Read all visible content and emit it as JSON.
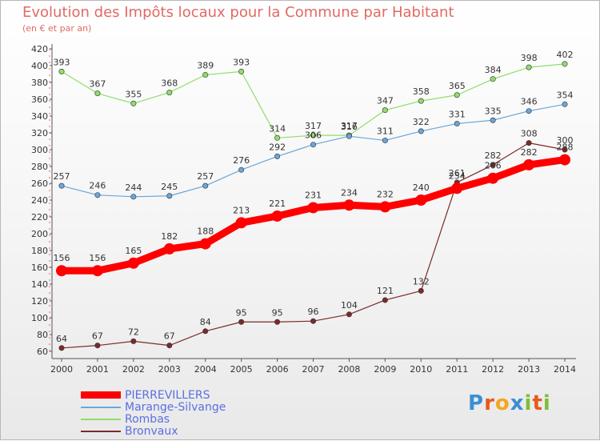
{
  "title": "Evolution des Impôts locaux pour la Commune par Habitant",
  "subtitle": "(en € et par an)",
  "logo": {
    "text": "Proxiti",
    "letters": [
      "P",
      "r",
      "o",
      "x",
      "i",
      "t",
      "i"
    ],
    "colors": [
      "#3a8fd4",
      "#e8591e",
      "#f2a81d",
      "#3a8fd4",
      "#7bbf3a",
      "#e8591e",
      "#7bbf3a"
    ]
  },
  "chart_data": {
    "type": "line",
    "title": "Evolution des Impôts locaux pour la Commune par Habitant",
    "subtitle": "(en € et par an)",
    "x": [
      2000,
      2001,
      2002,
      2003,
      2004,
      2005,
      2006,
      2007,
      2008,
      2009,
      2010,
      2011,
      2012,
      2013,
      2014
    ],
    "ylim": [
      60,
      420
    ],
    "yticks": [
      60,
      80,
      100,
      120,
      140,
      160,
      180,
      200,
      220,
      240,
      260,
      280,
      300,
      320,
      340,
      360,
      380,
      400,
      420
    ],
    "grid": false,
    "legend_position": "bottom-left",
    "series": [
      {
        "name": "PIERREVILLERS",
        "color": "#ff0000",
        "values": [
          156,
          156,
          165,
          182,
          188,
          213,
          221,
          231,
          234,
          232,
          240,
          254,
          266,
          282,
          288
        ],
        "labels": [
          "156",
          "156",
          "165",
          "182",
          "188",
          "213",
          "221",
          "231",
          "234",
          "232",
          "240",
          "254",
          "266",
          "282",
          "288"
        ]
      },
      {
        "name": "Marange-Silvange",
        "color": "#6aa6d9",
        "values": [
          257,
          246,
          244,
          245,
          257,
          276,
          292,
          306,
          316,
          311,
          322,
          331,
          335,
          346,
          354
        ],
        "labels": [
          "257",
          "246",
          "244",
          "245",
          "257",
          "276",
          "292",
          "306",
          "316",
          "311",
          "322",
          "331",
          "335",
          "346",
          "354"
        ]
      },
      {
        "name": "Rombas",
        "color": "#90dd6a",
        "values": [
          393,
          367,
          355,
          368,
          389,
          393,
          314,
          317,
          317,
          347,
          358,
          365,
          384,
          398,
          402
        ],
        "labels": [
          "393",
          "367",
          "355",
          "368",
          "389",
          "393",
          "314",
          "317",
          "317",
          "347",
          "358",
          "365",
          "384",
          "398",
          "402"
        ]
      },
      {
        "name": "Bronvaux",
        "color": "#7b2a2a",
        "values": [
          64,
          67,
          72,
          67,
          84,
          95,
          95,
          96,
          104,
          121,
          132,
          261,
          282,
          308,
          300
        ],
        "labels": [
          "64",
          "67",
          "72",
          "67",
          "84",
          "95",
          "95",
          "96",
          "104",
          "121",
          "132",
          "261",
          "282",
          "308",
          "300"
        ]
      }
    ]
  }
}
